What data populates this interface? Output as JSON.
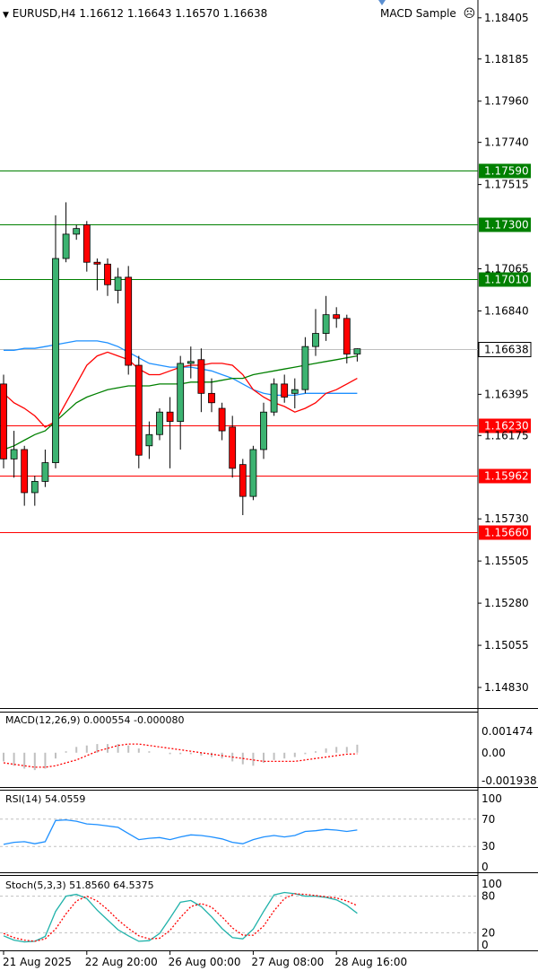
{
  "header": {
    "symbol_line": "EURUSD,H4  1.16612 1.16643 1.16570 1.16638",
    "expert_name": "MACD Sample"
  },
  "price_axis": {
    "labels": [
      "1.18405",
      "1.18185",
      "1.17960",
      "1.17740",
      "1.17515",
      "1.17065",
      "1.16840",
      "1.16395",
      "1.16175",
      "1.15730",
      "1.15505",
      "1.15280",
      "1.15055",
      "1.14830"
    ]
  },
  "levels": [
    {
      "label": "1.17590",
      "value": 1.1759,
      "color": "#008000"
    },
    {
      "label": "1.17300",
      "value": 1.173,
      "color": "#008000"
    },
    {
      "label": "1.17010",
      "value": 1.1701,
      "color": "#008000"
    },
    {
      "label": "1.16230",
      "value": 1.1623,
      "color": "#ff0000"
    },
    {
      "label": "1.15962",
      "value": 1.15962,
      "color": "#ff0000"
    },
    {
      "label": "1.15660",
      "value": 1.1566,
      "color": "#ff0000"
    }
  ],
  "current_price": {
    "label": "1.16638",
    "value": 1.16638
  },
  "chart_data": {
    "type": "candlestick",
    "symbol": "EURUSD",
    "timeframe": "H4",
    "ylim": [
      1.1472,
      1.185
    ],
    "candles": [
      {
        "o": 1.1645,
        "h": 1.165,
        "l": 1.16,
        "c": 1.1605
      },
      {
        "o": 1.1605,
        "h": 1.162,
        "l": 1.1595,
        "c": 1.161
      },
      {
        "o": 1.161,
        "h": 1.1612,
        "l": 1.158,
        "c": 1.1587
      },
      {
        "o": 1.1587,
        "h": 1.1596,
        "l": 1.158,
        "c": 1.1593
      },
      {
        "o": 1.1593,
        "h": 1.161,
        "l": 1.159,
        "c": 1.1603
      },
      {
        "o": 1.1603,
        "h": 1.1735,
        "l": 1.16,
        "c": 1.1712
      },
      {
        "o": 1.1712,
        "h": 1.1742,
        "l": 1.171,
        "c": 1.1725
      },
      {
        "o": 1.1725,
        "h": 1.173,
        "l": 1.1722,
        "c": 1.1728
      },
      {
        "o": 1.173,
        "h": 1.1732,
        "l": 1.1705,
        "c": 1.171
      },
      {
        "o": 1.171,
        "h": 1.1712,
        "l": 1.1695,
        "c": 1.1709
      },
      {
        "o": 1.1709,
        "h": 1.1712,
        "l": 1.1692,
        "c": 1.1698
      },
      {
        "o": 1.1695,
        "h": 1.1707,
        "l": 1.1688,
        "c": 1.1702
      },
      {
        "o": 1.1702,
        "h": 1.1708,
        "l": 1.165,
        "c": 1.1655
      },
      {
        "o": 1.1655,
        "h": 1.166,
        "l": 1.16,
        "c": 1.1607
      },
      {
        "o": 1.1612,
        "h": 1.1625,
        "l": 1.1605,
        "c": 1.1618
      },
      {
        "o": 1.1618,
        "h": 1.1632,
        "l": 1.1615,
        "c": 1.163
      },
      {
        "o": 1.163,
        "h": 1.1638,
        "l": 1.16,
        "c": 1.1625
      },
      {
        "o": 1.1625,
        "h": 1.166,
        "l": 1.161,
        "c": 1.1656
      },
      {
        "o": 1.1656,
        "h": 1.1665,
        "l": 1.1648,
        "c": 1.1657
      },
      {
        "o": 1.1658,
        "h": 1.1664,
        "l": 1.163,
        "c": 1.164
      },
      {
        "o": 1.164,
        "h": 1.1648,
        "l": 1.163,
        "c": 1.1635
      },
      {
        "o": 1.1632,
        "h": 1.1635,
        "l": 1.1615,
        "c": 1.162
      },
      {
        "o": 1.1622,
        "h": 1.1628,
        "l": 1.1595,
        "c": 1.16
      },
      {
        "o": 1.1602,
        "h": 1.1605,
        "l": 1.1575,
        "c": 1.1585
      },
      {
        "o": 1.1585,
        "h": 1.1612,
        "l": 1.1583,
        "c": 1.161
      },
      {
        "o": 1.161,
        "h": 1.1635,
        "l": 1.1605,
        "c": 1.163
      },
      {
        "o": 1.163,
        "h": 1.1648,
        "l": 1.1628,
        "c": 1.1645
      },
      {
        "o": 1.1645,
        "h": 1.165,
        "l": 1.1635,
        "c": 1.1638
      },
      {
        "o": 1.164,
        "h": 1.1648,
        "l": 1.1632,
        "c": 1.1642
      },
      {
        "o": 1.1642,
        "h": 1.167,
        "l": 1.164,
        "c": 1.1665
      },
      {
        "o": 1.1665,
        "h": 1.1685,
        "l": 1.166,
        "c": 1.1672
      },
      {
        "o": 1.1672,
        "h": 1.1692,
        "l": 1.1668,
        "c": 1.1682
      },
      {
        "o": 1.1682,
        "h": 1.1686,
        "l": 1.1675,
        "c": 1.168
      },
      {
        "o": 1.168,
        "h": 1.1682,
        "l": 1.1656,
        "c": 1.1661
      },
      {
        "o": 1.1661,
        "h": 1.1664,
        "l": 1.1657,
        "c": 1.16638
      }
    ],
    "ma_blue": [
      1.1663,
      1.1663,
      1.1664,
      1.1664,
      1.1665,
      1.1666,
      1.1667,
      1.1668,
      1.1668,
      1.1668,
      1.1667,
      1.1665,
      1.1662,
      1.1659,
      1.1656,
      1.1655,
      1.1654,
      1.1654,
      1.1654,
      1.1653,
      1.1652,
      1.165,
      1.1648,
      1.1645,
      1.1642,
      1.164,
      1.1639,
      1.1639,
      1.1639,
      1.164,
      1.164,
      1.164,
      1.164,
      1.164,
      1.164
    ],
    "ma_red": [
      1.164,
      1.1635,
      1.1632,
      1.1628,
      1.1622,
      1.1625,
      1.1635,
      1.1645,
      1.1655,
      1.166,
      1.1662,
      1.166,
      1.1658,
      1.1653,
      1.165,
      1.165,
      1.1652,
      1.1654,
      1.1655,
      1.1655,
      1.1656,
      1.1656,
      1.1655,
      1.165,
      1.1642,
      1.1638,
      1.1635,
      1.1633,
      1.163,
      1.1632,
      1.1635,
      1.164,
      1.1642,
      1.1645,
      1.1648
    ],
    "ma_green": [
      1.161,
      1.1612,
      1.1615,
      1.1618,
      1.162,
      1.1625,
      1.163,
      1.1635,
      1.1638,
      1.164,
      1.1642,
      1.1643,
      1.1644,
      1.1644,
      1.1644,
      1.1645,
      1.1645,
      1.1645,
      1.1646,
      1.1646,
      1.1646,
      1.1647,
      1.1648,
      1.1648,
      1.165,
      1.1651,
      1.1652,
      1.1653,
      1.1654,
      1.1655,
      1.1656,
      1.1657,
      1.1658,
      1.1659,
      1.166
    ]
  },
  "time_axis": {
    "labels": [
      "21 Aug 2025",
      "22 Aug 20:00",
      "26 Aug 00:00",
      "27 Aug 08:00",
      "28 Aug 16:00"
    ]
  },
  "macd": {
    "title": "MACD(12,26,9) 0.000554 -0.000080",
    "labels": [
      "0.001474",
      "0.00",
      "-0.001938"
    ],
    "ylim": [
      -0.001938,
      0.001474
    ],
    "histogram": [
      -0.0006,
      -0.0009,
      -0.0011,
      -0.0012,
      -0.0011,
      -0.0004,
      0.0001,
      0.0004,
      0.0005,
      0.0006,
      0.0006,
      0.0006,
      0.0005,
      0.0003,
      0.0001,
      0.0,
      -0.0001,
      -0.0001,
      -0.0001,
      -0.0002,
      -0.0003,
      -0.0004,
      -0.0006,
      -0.0008,
      -0.0009,
      -0.0007,
      -0.0005,
      -0.0004,
      -0.0003,
      -0.0001,
      0.0001,
      0.0003,
      0.0004,
      0.0004,
      0.000554
    ],
    "signal": [
      -0.0007,
      -0.0008,
      -0.0009,
      -0.001,
      -0.001,
      -0.0009,
      -0.0007,
      -0.0005,
      -0.0002,
      0.0001,
      0.0003,
      0.0005,
      0.0006,
      0.0006,
      0.0005,
      0.0004,
      0.0003,
      0.0002,
      0.0001,
      0.0,
      -0.0001,
      -0.0002,
      -0.0003,
      -0.0004,
      -0.0005,
      -0.0006,
      -0.0006,
      -0.0006,
      -0.0006,
      -0.0005,
      -0.0004,
      -0.0003,
      -0.0002,
      -0.0001,
      -8e-05
    ]
  },
  "rsi": {
    "title": "RSI(14) 54.0559",
    "labels": [
      "100",
      "70",
      "30",
      "0"
    ],
    "ylim": [
      0,
      100
    ],
    "values": [
      33,
      36,
      37,
      34,
      37,
      68,
      69,
      67,
      63,
      62,
      60,
      58,
      49,
      40,
      42,
      43,
      40,
      44,
      47,
      46,
      44,
      41,
      36,
      34,
      40,
      44,
      46,
      44,
      46,
      52,
      53,
      55,
      54,
      52,
      54.0559
    ]
  },
  "stoch": {
    "title": "Stoch(5,3,3) 51.8560 64.5375",
    "labels": [
      "100",
      "80",
      "20",
      "0"
    ],
    "ylim": [
      0,
      100
    ],
    "main": [
      15,
      8,
      5,
      6,
      14,
      55,
      80,
      83,
      76,
      57,
      41,
      25,
      15,
      6,
      7,
      19,
      44,
      70,
      73,
      63,
      46,
      27,
      12,
      10,
      26,
      55,
      82,
      86,
      84,
      80,
      80,
      78,
      74,
      65,
      51.856
    ],
    "signal": [
      19,
      12,
      8,
      6,
      10,
      26,
      51,
      72,
      80,
      72,
      58,
      41,
      27,
      15,
      10,
      11,
      24,
      45,
      63,
      68,
      62,
      46,
      28,
      16,
      16,
      31,
      56,
      76,
      84,
      83,
      81,
      79,
      77,
      72,
      64.5375
    ]
  }
}
